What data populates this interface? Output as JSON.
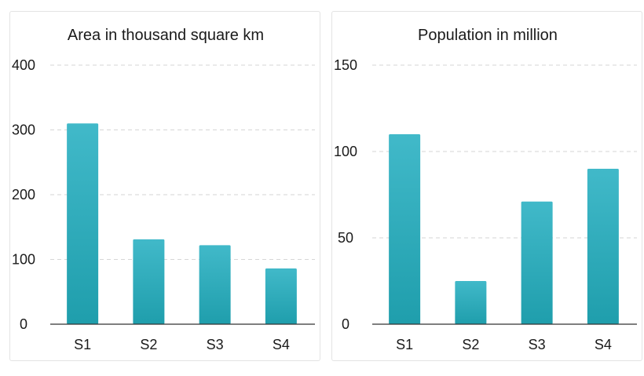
{
  "chart_data": [
    {
      "type": "bar",
      "title": "Area in thousand square km",
      "categories": [
        "S1",
        "S2",
        "S3",
        "S4"
      ],
      "values": [
        310,
        131,
        122,
        86
      ],
      "ylim": [
        0,
        400
      ],
      "yticks": [
        0,
        100,
        200,
        300,
        400
      ],
      "xlabel": "",
      "ylabel": "",
      "grid": true,
      "colors": {
        "bar_top": "#41b9c9",
        "bar_bottom": "#1f9eac"
      }
    },
    {
      "type": "bar",
      "title": "Population in  million",
      "categories": [
        "S1",
        "S2",
        "S3",
        "S4"
      ],
      "values": [
        110,
        25,
        71,
        90
      ],
      "ylim": [
        0,
        150
      ],
      "yticks": [
        0,
        50,
        100,
        150
      ],
      "xlabel": "",
      "ylabel": "",
      "grid": true,
      "colors": {
        "bar_top": "#41b9c9",
        "bar_bottom": "#1f9eac"
      }
    }
  ]
}
